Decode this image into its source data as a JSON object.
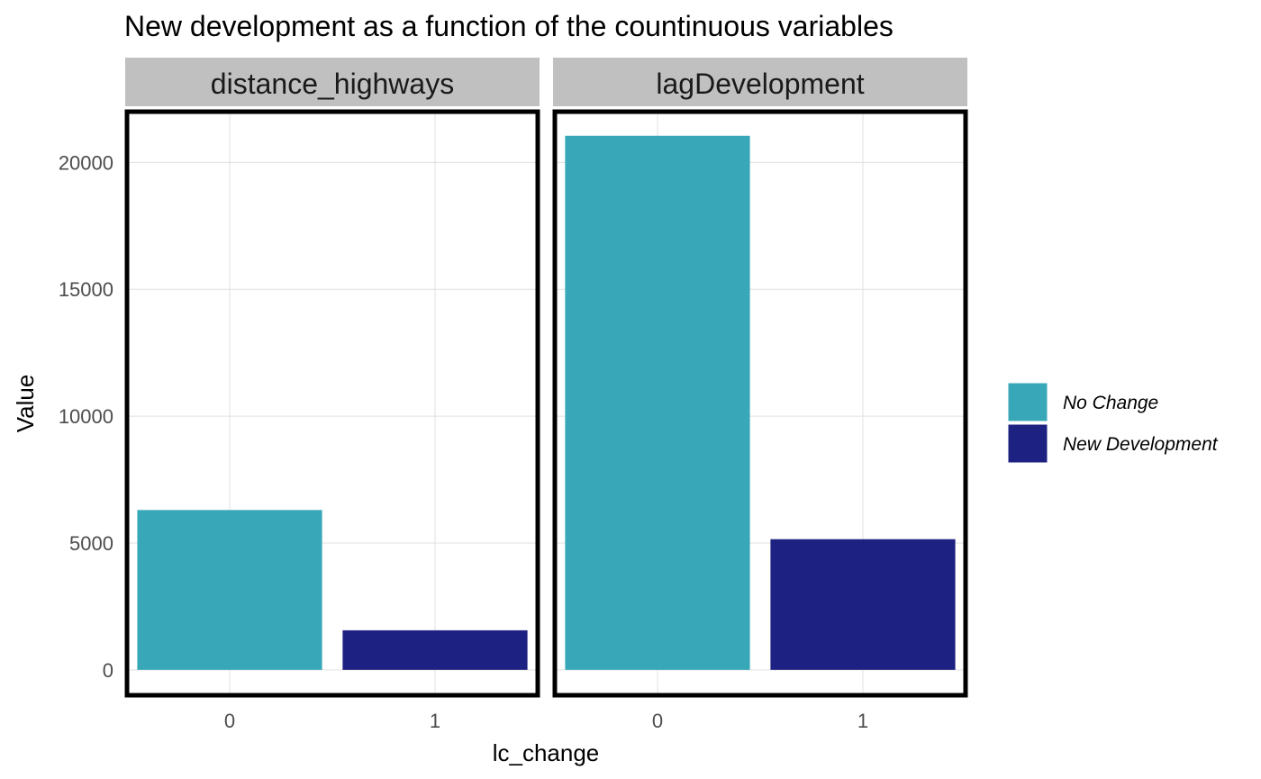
{
  "chart_data": {
    "type": "bar",
    "title": "New development as a function of the countinuous variables",
    "xlabel": "lc_change",
    "ylabel": "Value",
    "ylim": [
      -1000,
      22000
    ],
    "yticks": [
      0,
      5000,
      10000,
      15000,
      20000
    ],
    "categories": [
      "0",
      "1"
    ],
    "grid": true,
    "legend_position": "right",
    "panels": [
      {
        "name": "distance_highways",
        "values": [
          6300,
          1560
        ]
      },
      {
        "name": "lagDevelopment",
        "values": [
          21050,
          5150
        ]
      }
    ],
    "legend": [
      {
        "label": "No Change",
        "color": "#38a8b8"
      },
      {
        "label": "New Development",
        "color": "#1d2181"
      }
    ]
  },
  "colors": {
    "strip_background": "#c0c0c0",
    "panel_border": "#000000",
    "grid": "#e0e0e0",
    "tick_text": "#4d4d4d"
  }
}
